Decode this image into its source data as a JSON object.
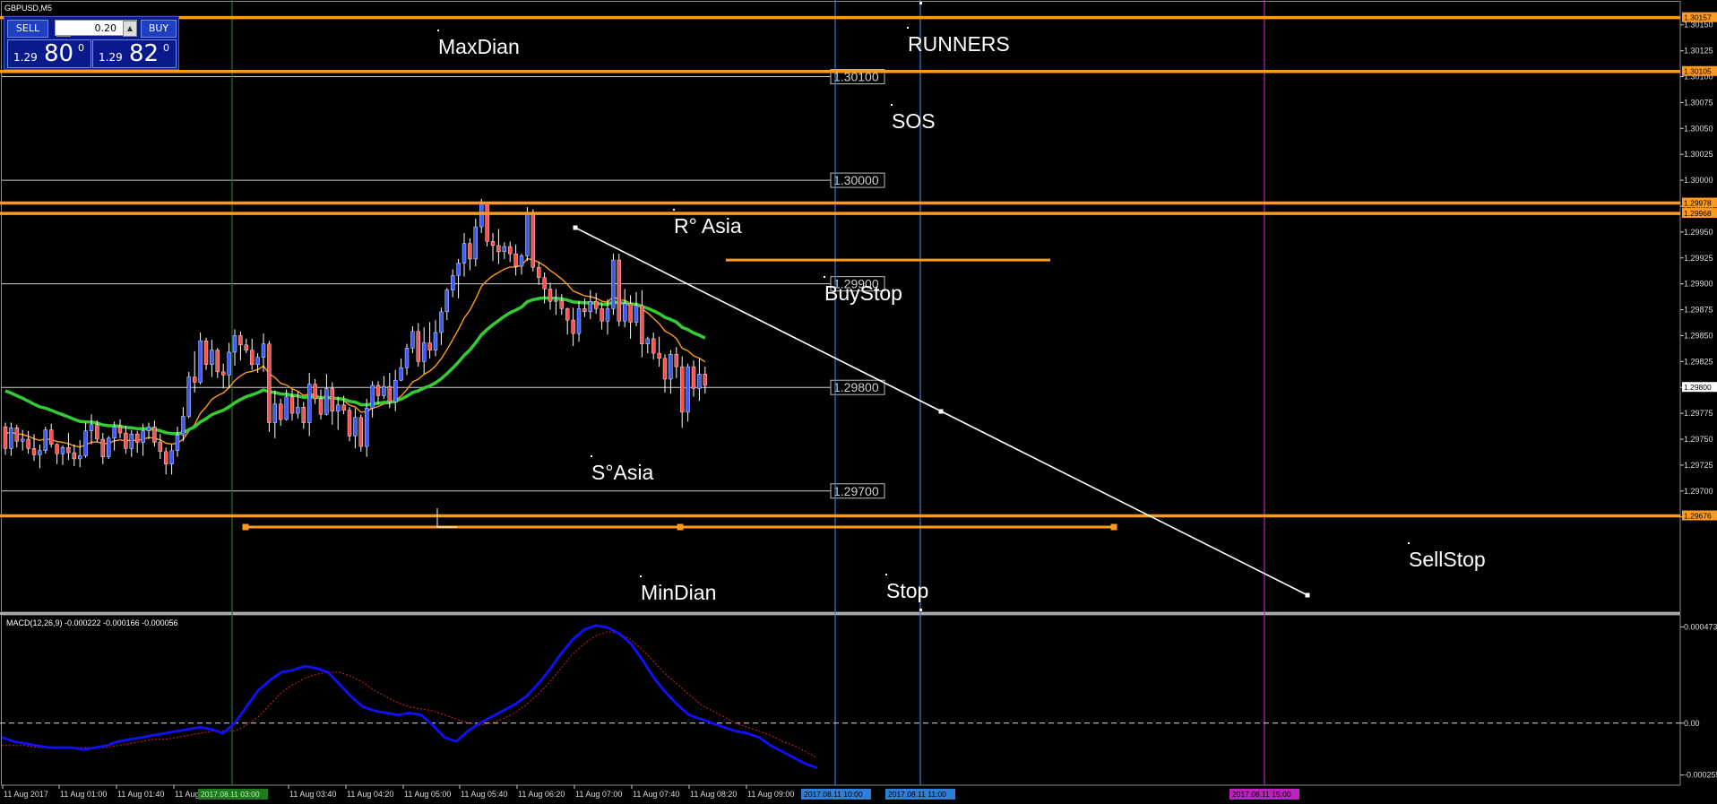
{
  "window": {
    "title": "GBPUSD,M5"
  },
  "trade_panel": {
    "sell_label": "SELL",
    "buy_label": "BUY",
    "lots": "0.20",
    "sell_price": {
      "prefix": "1.29",
      "big": "80",
      "sup": "0"
    },
    "buy_price": {
      "prefix": "1.29",
      "big": "82",
      "sup": "0"
    }
  },
  "colors": {
    "background": "#000000",
    "bull_candle": "#3b5bff",
    "bear_candle": "#ff5050",
    "orange_lines": "#ff9a1f",
    "ma_green": "#33cc33",
    "ma_orange": "#ff9a1f",
    "macd_main": "#1010ff",
    "macd_signal": "#dd2020",
    "period_blue": "#2f7fd8",
    "period_magenta": "#c020c0",
    "period_green": "#1d7a1d"
  },
  "chart_data": [
    {
      "type": "candlestick",
      "symbol": "GBPUSD",
      "timeframe": "M5",
      "ylim": [
        1.29583,
        1.30174
      ],
      "y_ticks": [
        "1.30150",
        "1.30125",
        "1.30100",
        "1.30075",
        "1.30050",
        "1.30025",
        "1.30000",
        "1.29975",
        "1.29950",
        "1.29925",
        "1.29900",
        "1.29875",
        "1.29850",
        "1.29825",
        "1.29800",
        "1.29775",
        "1.29750",
        "1.29725",
        "1.29700",
        "1.29675"
      ],
      "x_tick_labels": [
        "11 Aug 2017",
        "11 Aug 01:00",
        "11 Aug 01:40",
        "11 Aug 02:20",
        "11 Aug 03:40",
        "11 Aug 04:20",
        "11 Aug 05:00",
        "11 Aug 05:40",
        "11 Aug 06:20",
        "11 Aug 07:00",
        "11 Aug 07:40",
        "11 Aug 08:20",
        "11 Aug 09:00"
      ],
      "time_markers": [
        {
          "label": "2017.08.11 03:00",
          "color": "green"
        },
        {
          "label": "2017.08.11 10:00",
          "color": "blue"
        },
        {
          "label": "2017.08.11 11:00",
          "color": "blue"
        },
        {
          "label": "2017.08.11 15:00",
          "color": "magenta"
        }
      ],
      "price_labels_right": [
        "1.30157",
        "1.30105",
        "1.29978",
        "1.29968",
        "1.29800",
        "1.29676"
      ],
      "horizontal_levels": [
        {
          "price": 1.30157,
          "style": "orange-thick"
        },
        {
          "price": 1.30105,
          "style": "orange-thick"
        },
        {
          "price": 1.29978,
          "style": "orange-thick"
        },
        {
          "price": 1.29968,
          "style": "orange-thick"
        },
        {
          "price": 1.29676,
          "style": "orange-thick"
        },
        {
          "price": 1.301,
          "style": "grey",
          "label": "1.30100"
        },
        {
          "price": 1.3,
          "style": "grey",
          "label": "1.30000"
        },
        {
          "price": 1.299,
          "style": "grey",
          "label": "1.29900"
        },
        {
          "price": 1.298,
          "style": "grey",
          "label": "1.29800"
        },
        {
          "price": 1.297,
          "style": "grey",
          "label": "1.29700"
        }
      ],
      "text_annotations": [
        "MaxDian",
        "RUNNERS",
        "SOS",
        "R° Asia",
        "BuyStop",
        "S°Asia",
        "MinDian",
        "Stop",
        "SellStop"
      ],
      "candles": [
        [
          1.29762,
          1.29766,
          1.29735,
          1.29741
        ],
        [
          1.29741,
          1.29766,
          1.29734,
          1.29761
        ],
        [
          1.29761,
          1.29764,
          1.29742,
          1.29748
        ],
        [
          1.29748,
          1.29759,
          1.29739,
          1.2975
        ],
        [
          1.2975,
          1.29758,
          1.29736,
          1.29741
        ],
        [
          1.29741,
          1.29755,
          1.29729,
          1.29735
        ],
        [
          1.29735,
          1.29745,
          1.29722,
          1.29739
        ],
        [
          1.29739,
          1.29762,
          1.29736,
          1.29759
        ],
        [
          1.29759,
          1.29765,
          1.29742,
          1.29745
        ],
        [
          1.29745,
          1.29746,
          1.29726,
          1.29736
        ],
        [
          1.29736,
          1.29744,
          1.29725,
          1.29742
        ],
        [
          1.29742,
          1.29756,
          1.2973,
          1.29737
        ],
        [
          1.29737,
          1.29745,
          1.29724,
          1.29731
        ],
        [
          1.29731,
          1.29749,
          1.29723,
          1.29734
        ],
        [
          1.29734,
          1.29766,
          1.29732,
          1.29758
        ],
        [
          1.29758,
          1.29774,
          1.29745,
          1.29764
        ],
        [
          1.29764,
          1.29768,
          1.29747,
          1.2975
        ],
        [
          1.2975,
          1.29756,
          1.29726,
          1.29733
        ],
        [
          1.29733,
          1.29753,
          1.29731,
          1.29751
        ],
        [
          1.29751,
          1.29767,
          1.29739,
          1.29762
        ],
        [
          1.29762,
          1.29769,
          1.29751,
          1.29756
        ],
        [
          1.29756,
          1.29763,
          1.29736,
          1.29741
        ],
        [
          1.29741,
          1.29759,
          1.29733,
          1.29755
        ],
        [
          1.29755,
          1.29758,
          1.29737,
          1.29747
        ],
        [
          1.29747,
          1.29765,
          1.29734,
          1.29758
        ],
        [
          1.29758,
          1.29766,
          1.2975,
          1.29762
        ],
        [
          1.29762,
          1.29768,
          1.29743,
          1.29747
        ],
        [
          1.29747,
          1.29755,
          1.29731,
          1.29738
        ],
        [
          1.29738,
          1.29742,
          1.29716,
          1.29726
        ],
        [
          1.29726,
          1.29745,
          1.29716,
          1.29739
        ],
        [
          1.29739,
          1.29762,
          1.29733,
          1.29754
        ],
        [
          1.29754,
          1.29781,
          1.29748,
          1.29772
        ],
        [
          1.29772,
          1.29815,
          1.2977,
          1.2981
        ],
        [
          1.2981,
          1.29835,
          1.29795,
          1.29805
        ],
        [
          1.29805,
          1.29853,
          1.29803,
          1.29845
        ],
        [
          1.29845,
          1.29848,
          1.29817,
          1.29822
        ],
        [
          1.29822,
          1.29846,
          1.2981,
          1.29836
        ],
        [
          1.29836,
          1.29838,
          1.29809,
          1.29815
        ],
        [
          1.29815,
          1.29823,
          1.29799,
          1.29812
        ],
        [
          1.29812,
          1.29843,
          1.29799,
          1.29834
        ],
        [
          1.29834,
          1.29856,
          1.29821,
          1.2985
        ],
        [
          1.2985,
          1.29854,
          1.29826,
          1.29841
        ],
        [
          1.29841,
          1.29847,
          1.29833,
          1.29836
        ],
        [
          1.29836,
          1.29847,
          1.29817,
          1.29822
        ],
        [
          1.29822,
          1.29833,
          1.29814,
          1.29829
        ],
        [
          1.29829,
          1.29852,
          1.29815,
          1.29842
        ],
        [
          1.29842,
          1.29845,
          1.29757,
          1.29766
        ],
        [
          1.29766,
          1.29797,
          1.29751,
          1.29784
        ],
        [
          1.29784,
          1.29789,
          1.29763,
          1.29769
        ],
        [
          1.29769,
          1.29798,
          1.29768,
          1.29791
        ],
        [
          1.29791,
          1.29798,
          1.29768,
          1.29775
        ],
        [
          1.29775,
          1.29796,
          1.2977,
          1.29781
        ],
        [
          1.29781,
          1.29786,
          1.2976,
          1.29766
        ],
        [
          1.29766,
          1.29814,
          1.29753,
          1.29803
        ],
        [
          1.29803,
          1.29808,
          1.29784,
          1.29789
        ],
        [
          1.29789,
          1.29798,
          1.29769,
          1.29774
        ],
        [
          1.29774,
          1.29813,
          1.29773,
          1.29799
        ],
        [
          1.29799,
          1.29805,
          1.29764,
          1.29777
        ],
        [
          1.29777,
          1.29791,
          1.29759,
          1.29783
        ],
        [
          1.29783,
          1.29792,
          1.29774,
          1.29778
        ],
        [
          1.29778,
          1.29781,
          1.29748,
          1.29753
        ],
        [
          1.29753,
          1.2978,
          1.29741,
          1.29771
        ],
        [
          1.29771,
          1.29774,
          1.29738,
          1.29743
        ],
        [
          1.29743,
          1.29789,
          1.29733,
          1.2978
        ],
        [
          1.2978,
          1.29806,
          1.29771,
          1.29802
        ],
        [
          1.29802,
          1.29806,
          1.29784,
          1.29792
        ],
        [
          1.29792,
          1.29811,
          1.29789,
          1.29801
        ],
        [
          1.29801,
          1.29814,
          1.2978,
          1.29786
        ],
        [
          1.29786,
          1.29817,
          1.29777,
          1.29807
        ],
        [
          1.29807,
          1.29828,
          1.29806,
          1.29819
        ],
        [
          1.29819,
          1.29842,
          1.29812,
          1.29838
        ],
        [
          1.29838,
          1.29859,
          1.29833,
          1.29854
        ],
        [
          1.29854,
          1.29862,
          1.2982,
          1.29825
        ],
        [
          1.29825,
          1.29858,
          1.29813,
          1.29843
        ],
        [
          1.29843,
          1.29863,
          1.29828,
          1.29836
        ],
        [
          1.29836,
          1.29865,
          1.2983,
          1.29853
        ],
        [
          1.29853,
          1.29877,
          1.29841,
          1.29873
        ],
        [
          1.29873,
          1.29896,
          1.29865,
          1.29894
        ],
        [
          1.29894,
          1.29914,
          1.29887,
          1.29908
        ],
        [
          1.29908,
          1.29924,
          1.29886,
          1.2992
        ],
        [
          1.2992,
          1.29949,
          1.29907,
          1.29939
        ],
        [
          1.29939,
          1.29944,
          1.29913,
          1.29924
        ],
        [
          1.29924,
          1.29963,
          1.29917,
          1.29955
        ],
        [
          1.29955,
          1.29982,
          1.29949,
          1.29977
        ],
        [
          1.29977,
          1.29979,
          1.29936,
          1.29941
        ],
        [
          1.29941,
          1.29949,
          1.29922,
          1.29937
        ],
        [
          1.29937,
          1.29953,
          1.29919,
          1.29931
        ],
        [
          1.29931,
          1.2994,
          1.29924,
          1.29936
        ],
        [
          1.29936,
          1.29941,
          1.29921,
          1.29929
        ],
        [
          1.29929,
          1.29938,
          1.29908,
          1.29917
        ],
        [
          1.29917,
          1.29929,
          1.29909,
          1.29927
        ],
        [
          1.29927,
          1.29974,
          1.29922,
          1.29967
        ],
        [
          1.29967,
          1.29972,
          1.29912,
          1.29916
        ],
        [
          1.29916,
          1.29921,
          1.29899,
          1.29906
        ],
        [
          1.29906,
          1.29911,
          1.29881,
          1.29895
        ],
        [
          1.29895,
          1.29901,
          1.29875,
          1.29883
        ],
        [
          1.29883,
          1.29895,
          1.2987,
          1.29884
        ],
        [
          1.29884,
          1.2989,
          1.2987,
          1.29876
        ],
        [
          1.29876,
          1.29877,
          1.29851,
          1.29865
        ],
        [
          1.29865,
          1.29877,
          1.2984,
          1.29852
        ],
        [
          1.29852,
          1.29883,
          1.29844,
          1.29876
        ],
        [
          1.29876,
          1.29886,
          1.29868,
          1.29873
        ],
        [
          1.29873,
          1.29894,
          1.29866,
          1.29883
        ],
        [
          1.29883,
          1.29891,
          1.29871,
          1.29876
        ],
        [
          1.29876,
          1.29882,
          1.29856,
          1.29864
        ],
        [
          1.29864,
          1.29885,
          1.29851,
          1.29876
        ],
        [
          1.29876,
          1.29929,
          1.2987,
          1.29923
        ],
        [
          1.29923,
          1.29929,
          1.29859,
          1.29864
        ],
        [
          1.29864,
          1.29895,
          1.29858,
          1.29881
        ],
        [
          1.29881,
          1.29889,
          1.29847,
          1.29863
        ],
        [
          1.29863,
          1.29892,
          1.29859,
          1.29879
        ],
        [
          1.29879,
          1.29894,
          1.29829,
          1.29842
        ],
        [
          1.29842,
          1.29849,
          1.29833,
          1.29847
        ],
        [
          1.29847,
          1.29853,
          1.29827,
          1.29833
        ],
        [
          1.29833,
          1.29849,
          1.2982,
          1.29828
        ],
        [
          1.29828,
          1.29832,
          1.29795,
          1.29808
        ],
        [
          1.29808,
          1.29836,
          1.29794,
          1.29832
        ],
        [
          1.29832,
          1.29839,
          1.29809,
          1.2982
        ],
        [
          1.2982,
          1.2983,
          1.29761,
          1.29776
        ],
        [
          1.29776,
          1.29823,
          1.29767,
          1.2982
        ],
        [
          1.2982,
          1.29826,
          1.29791,
          1.29799
        ],
        [
          1.29799,
          1.29828,
          1.29787,
          1.29813
        ],
        [
          1.29813,
          1.2982,
          1.29794,
          1.29802
        ]
      ],
      "ma_green_end": 1.29852,
      "ma_orange_end": 1.29845
    },
    {
      "type": "line",
      "title": "MACD(12,26,9) -0.000222 -0.000166 -0.000056",
      "ylim": [
        -0.000305,
        0.000532
      ],
      "y_ticks": [
        "0.000473",
        "0.00",
        "-0.000255"
      ],
      "series": [
        {
          "name": "MACD main",
          "values": [
            -7e-05,
            -9e-05,
            -0.0001,
            -0.00011,
            -0.00012,
            -0.00012,
            -0.00012,
            -0.00013,
            -0.00012,
            -0.00011,
            -9e-05,
            -8e-05,
            -7e-05,
            -6e-05,
            -5e-05,
            -4e-05,
            -3e-05,
            -2e-05,
            -3e-05,
            -5e-05,
            0.0,
            8e-05,
            0.00016,
            0.00021,
            0.00025,
            0.00026,
            0.00028,
            0.00027,
            0.00025,
            0.00019,
            0.00013,
            8e-05,
            6e-05,
            5e-05,
            4e-05,
            5e-05,
            4e-05,
            -1e-05,
            -7e-05,
            -9e-05,
            -4e-05,
            0.0,
            3e-05,
            6e-05,
            9e-05,
            0.00013,
            0.00019,
            0.00026,
            0.00034,
            0.00041,
            0.00046,
            0.00048,
            0.00047,
            0.00044,
            0.00039,
            0.00031,
            0.00022,
            0.00015,
            9e-05,
            4e-05,
            2e-05,
            0.0,
            -2e-05,
            -4e-05,
            -5e-05,
            -7e-05,
            -0.00011,
            -0.00014,
            -0.00017,
            -0.0002,
            -0.00022
          ]
        },
        {
          "name": "Signal",
          "values": [
            -0.00011,
            -0.00011,
            -0.00011,
            -0.00012,
            -0.00012,
            -0.00012,
            -0.00012,
            -0.00012,
            -0.00012,
            -0.00012,
            -0.00011,
            -0.0001,
            -9e-05,
            -8e-05,
            -8e-05,
            -7e-05,
            -6e-05,
            -5e-05,
            -4e-05,
            -4e-05,
            -4e-05,
            -1e-05,
            3e-05,
            9e-05,
            0.00015,
            0.00019,
            0.00022,
            0.00024,
            0.00025,
            0.00025,
            0.00023,
            0.0002,
            0.00016,
            0.00013,
            0.0001,
            8e-05,
            7e-05,
            6e-05,
            4e-05,
            2e-05,
            0.0,
            -1e-05,
            0.0,
            2e-05,
            5e-05,
            9e-05,
            0.00014,
            0.0002,
            0.00027,
            0.00034,
            0.00039,
            0.00043,
            0.00045,
            0.00044,
            0.00041,
            0.00036,
            0.0003,
            0.00024,
            0.00019,
            0.00014,
            9e-05,
            6e-05,
            3e-05,
            0.0,
            -2e-05,
            -4e-05,
            -6e-05,
            -9e-05,
            -0.00011,
            -0.00014,
            -0.00017
          ]
        }
      ]
    }
  ]
}
